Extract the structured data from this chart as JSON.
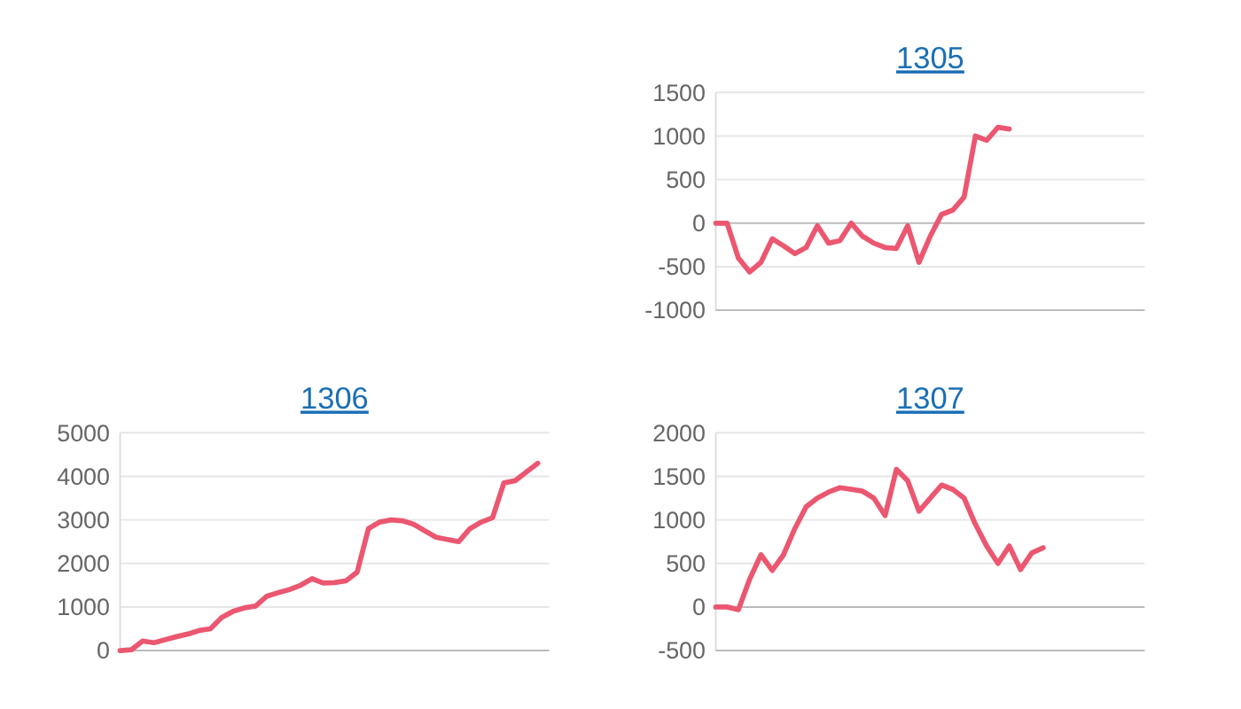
{
  "chart_data": [
    {
      "type": "line",
      "title": "1305",
      "categories": [
        null,
        null,
        null,
        null,
        null,
        null,
        null,
        null,
        null,
        null,
        null,
        null,
        null,
        null,
        null,
        null,
        null,
        null,
        null,
        null,
        null,
        null,
        null,
        null,
        null,
        null,
        null,
        null,
        null,
        null,
        null,
        null,
        null,
        null,
        null,
        null,
        null,
        null,
        null
      ],
      "series": [
        {
          "color": "#eb5770",
          "values": [
            0,
            0,
            -400,
            -560,
            -450,
            -180,
            -260,
            -350,
            -280,
            -30,
            -230,
            -200,
            0,
            -150,
            -230,
            -280,
            -290,
            -30,
            -450,
            -150,
            100,
            150,
            300,
            1000,
            950,
            1100,
            1080,
            null,
            null,
            null,
            null,
            null,
            null,
            null,
            null,
            null,
            null,
            null,
            null
          ]
        }
      ],
      "ylim": [
        -1000,
        1500
      ],
      "yticks": [
        -1000,
        -500,
        0,
        500,
        1000,
        1500
      ],
      "grid": "y",
      "marker": "none"
    },
    {
      "type": "line",
      "title": "1306",
      "categories": [
        null,
        null,
        null,
        null,
        null,
        null,
        null,
        null,
        null,
        null,
        null,
        null,
        null,
        null,
        null,
        null,
        null,
        null,
        null,
        null,
        null,
        null,
        null,
        null,
        null,
        null,
        null,
        null,
        null,
        null,
        null,
        null,
        null,
        null,
        null,
        null,
        null,
        null,
        null
      ],
      "series": [
        {
          "color": "#eb5770",
          "values": [
            0,
            20,
            220,
            180,
            250,
            320,
            380,
            460,
            500,
            760,
            900,
            980,
            1020,
            1250,
            1330,
            1400,
            1500,
            1650,
            1550,
            1560,
            1600,
            1800,
            2800,
            2950,
            3000,
            2980,
            2900,
            2750,
            2600,
            2550,
            2500,
            2800,
            2950,
            3050,
            3850,
            3900,
            4100,
            4300,
            null
          ]
        }
      ],
      "ylim": [
        0,
        5000
      ],
      "yticks": [
        0,
        1000,
        2000,
        3000,
        4000,
        5000
      ],
      "grid": "y",
      "marker": "none"
    },
    {
      "type": "line",
      "title": "1307",
      "categories": [
        null,
        null,
        null,
        null,
        null,
        null,
        null,
        null,
        null,
        null,
        null,
        null,
        null,
        null,
        null,
        null,
        null,
        null,
        null,
        null,
        null,
        null,
        null,
        null,
        null,
        null,
        null,
        null,
        null,
        null,
        null,
        null,
        null,
        null,
        null,
        null,
        null,
        null,
        null
      ],
      "series": [
        {
          "color": "#eb5770",
          "values": [
            0,
            0,
            -30,
            320,
            600,
            420,
            600,
            900,
            1150,
            1250,
            1320,
            1370,
            1350,
            1330,
            1250,
            1050,
            1580,
            1450,
            1100,
            1250,
            1400,
            1350,
            1250,
            950,
            700,
            500,
            700,
            430,
            620,
            680,
            null,
            null,
            null,
            null,
            null,
            null,
            null,
            null,
            null
          ]
        }
      ],
      "ylim": [
        -500,
        2000
      ],
      "yticks": [
        -500,
        0,
        500,
        1000,
        1500,
        2000
      ],
      "grid": "y",
      "marker": "none"
    }
  ]
}
